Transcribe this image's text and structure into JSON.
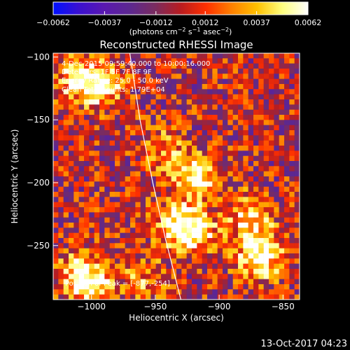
{
  "chart_data": {
    "type": "heatmap",
    "title": "Reconstructed RHESSI Image",
    "xlabel": "Heliocentric X (arcsec)",
    "ylabel": "Heliocentric Y (arcsec)",
    "xlim": [
      -1030,
      -837
    ],
    "ylim": [
      -293,
      -97
    ],
    "x_ticks": [
      -1000,
      -950,
      -900,
      -850
    ],
    "x_tick_labels": [
      "−1000",
      "−950",
      "−900",
      "−850"
    ],
    "y_ticks": [
      -100,
      -150,
      -200,
      -250
    ],
    "y_tick_labels": [
      "−100",
      "−150",
      "−200",
      "−250"
    ],
    "colorbar": {
      "range": [
        -0.0062,
        0.0062
      ],
      "ticks": [
        -0.0062,
        -0.0037,
        -0.0012,
        0.0012,
        0.0037,
        0.0062
      ],
      "tick_labels": [
        "−0.0062",
        "−0.0037",
        "−0.0012",
        "0.0012",
        "0.0037",
        "0.0062"
      ],
      "unit_prefix": "(photons cm",
      "unit_exp1": "−2",
      "unit_mid1": " s",
      "unit_exp2": "−1",
      "unit_mid2": " asec",
      "unit_exp3": "−2",
      "unit_suffix": ")",
      "colors": [
        "#0010ff",
        "#3a10d0",
        "#5a18b0",
        "#5c2890",
        "#7a2c60",
        "#b81c20",
        "#ff3000",
        "#ff8000",
        "#ffc000",
        "#ffff80",
        "#ffffff"
      ]
    },
    "sources": [
      {
        "x": -993,
        "y": -122,
        "peak": 0.0058
      },
      {
        "x": -1013,
        "y": -118,
        "peak": 0.004
      },
      {
        "x": -944,
        "y": -172,
        "peak": 0.0032
      },
      {
        "x": -918,
        "y": -196,
        "peak": 0.0062
      },
      {
        "x": -933,
        "y": -232,
        "peak": 0.0054
      },
      {
        "x": -918,
        "y": -240,
        "peak": 0.0048
      },
      {
        "x": -872,
        "y": -237,
        "peak": 0.0032
      },
      {
        "x": -868,
        "y": -260,
        "peak": 0.0062
      },
      {
        "x": -1000,
        "y": -282,
        "peak": 0.0058
      },
      {
        "x": -1010,
        "y": -268,
        "peak": 0.0035
      },
      {
        "x": -958,
        "y": -276,
        "peak": 0.0028
      },
      {
        "x": -882,
        "y": -222,
        "peak": 0.0025
      }
    ],
    "limb_curve": [
      {
        "x": -970,
        "y": -97
      },
      {
        "x": -962,
        "y": -150
      },
      {
        "x": -952,
        "y": -200
      },
      {
        "x": -942,
        "y": -245
      },
      {
        "x": -930,
        "y": -293
      }
    ],
    "peak_position": [
      -877,
      -254
    ]
  },
  "annotations": {
    "time_range": "4-Dec-2015 09:59:40.000 to 10:00:16.000",
    "detectors": "Detectors: 1F 5F 7F 8F 9F",
    "energy": "Energy Range: 25.0 - 50.0 keV",
    "clean": "Clean    Total counts: 1.79E+04",
    "peak": "Position of Peak = [-877,-254]"
  },
  "footer": {
    "timestamp": "13-Oct-2017 04:23"
  }
}
